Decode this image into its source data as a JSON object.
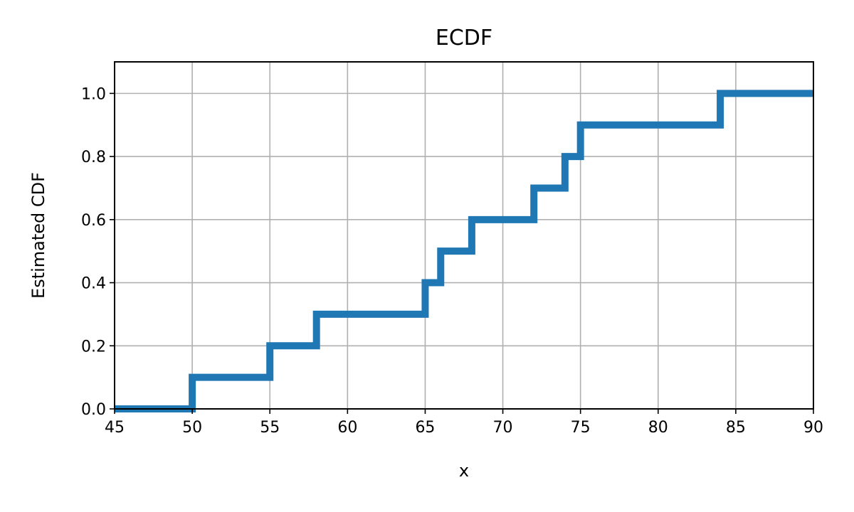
{
  "chart_data": {
    "type": "line",
    "drawstyle": "steps-post",
    "title": "ECDF",
    "xlabel": "x",
    "ylabel": "Estimated CDF",
    "xlim": [
      45,
      90
    ],
    "ylim": [
      0,
      1.1
    ],
    "xticks": [
      45,
      50,
      55,
      60,
      65,
      70,
      75,
      80,
      85,
      90
    ],
    "xtick_labels": [
      "45",
      "50",
      "55",
      "60",
      "65",
      "70",
      "75",
      "80",
      "85",
      "90"
    ],
    "yticks": [
      0.0,
      0.2,
      0.4,
      0.6,
      0.8,
      1.0
    ],
    "ytick_labels": [
      "0.0",
      "0.2",
      "0.4",
      "0.6",
      "0.8",
      "1.0"
    ],
    "grid": true,
    "series": [
      {
        "x": [
          45,
          50,
          55,
          58,
          65,
          66,
          68,
          72,
          74,
          75,
          84,
          90
        ],
        "y": [
          0.0,
          0.1,
          0.2,
          0.3,
          0.4,
          0.5,
          0.6,
          0.7,
          0.8,
          0.9,
          1.0,
          1.0
        ],
        "color": "#1f77b4"
      }
    ]
  }
}
